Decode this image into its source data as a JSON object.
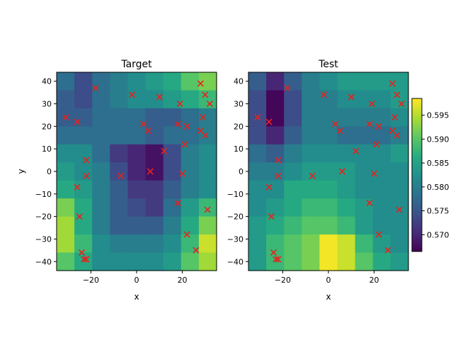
{
  "chart_data": [
    {
      "type": "heatmap",
      "title": "Target",
      "xlabel": "x",
      "ylabel": "y",
      "xlim": [
        -35,
        35
      ],
      "ylim": [
        -44,
        44
      ],
      "xticks": [
        -20,
        0,
        20
      ],
      "xtick_labels": [
        "−20",
        "0",
        "20"
      ],
      "yticks": [
        -40,
        -30,
        -20,
        -10,
        0,
        10,
        20,
        30,
        40
      ],
      "ytick_labels": [
        "−40",
        "−30",
        "−20",
        "−10",
        "0",
        "10",
        "20",
        "30",
        "40"
      ],
      "grid_cols": 9,
      "grid_rows": 11,
      "values": [
        [
          0.578,
          0.574,
          0.578,
          0.58,
          0.582,
          0.584,
          0.586,
          0.59,
          0.592
        ],
        [
          0.576,
          0.574,
          0.578,
          0.58,
          0.582,
          0.582,
          0.584,
          0.586,
          0.588
        ],
        [
          0.576,
          0.576,
          0.578,
          0.578,
          0.578,
          0.576,
          0.576,
          0.578,
          0.58
        ],
        [
          0.578,
          0.578,
          0.578,
          0.578,
          0.578,
          0.576,
          0.578,
          0.578,
          0.58
        ],
        [
          0.582,
          0.582,
          0.578,
          0.572,
          0.57,
          0.568,
          0.574,
          0.58,
          0.582
        ],
        [
          0.584,
          0.582,
          0.58,
          0.574,
          0.57,
          0.568,
          0.574,
          0.58,
          0.582
        ],
        [
          0.586,
          0.584,
          0.58,
          0.576,
          0.572,
          0.572,
          0.576,
          0.58,
          0.582
        ],
        [
          0.592,
          0.586,
          0.58,
          0.576,
          0.574,
          0.572,
          0.578,
          0.584,
          0.588
        ],
        [
          0.594,
          0.586,
          0.58,
          0.576,
          0.576,
          0.576,
          0.58,
          0.586,
          0.592
        ],
        [
          0.594,
          0.588,
          0.582,
          0.58,
          0.58,
          0.58,
          0.582,
          0.588,
          0.596
        ],
        [
          0.59,
          0.586,
          0.582,
          0.582,
          0.582,
          0.582,
          0.584,
          0.59,
          0.594
        ]
      ]
    },
    {
      "type": "heatmap",
      "title": "Test",
      "xlabel": "x",
      "xlim": [
        -35,
        35
      ],
      "ylim": [
        -44,
        44
      ],
      "xticks": [
        -20,
        0,
        20
      ],
      "xtick_labels": [
        "−20",
        "0",
        "20"
      ],
      "yticks": [
        -40,
        -30,
        -20,
        -10,
        0,
        10,
        20,
        30,
        40
      ],
      "ytick_labels": [
        "−40",
        "−30",
        "−20",
        "−10",
        "0",
        "10",
        "20",
        "30",
        "40"
      ],
      "grid_cols": 9,
      "grid_rows": 11,
      "values": [
        [
          0.576,
          0.57,
          0.576,
          0.58,
          0.582,
          0.584,
          0.584,
          0.584,
          0.584
        ],
        [
          0.574,
          0.567,
          0.574,
          0.58,
          0.58,
          0.582,
          0.582,
          0.582,
          0.584
        ],
        [
          0.574,
          0.567,
          0.574,
          0.58,
          0.58,
          0.58,
          0.58,
          0.58,
          0.582
        ],
        [
          0.574,
          0.57,
          0.576,
          0.58,
          0.58,
          0.578,
          0.578,
          0.578,
          0.58
        ],
        [
          0.578,
          0.576,
          0.58,
          0.582,
          0.582,
          0.582,
          0.582,
          0.582,
          0.584
        ],
        [
          0.58,
          0.58,
          0.582,
          0.584,
          0.584,
          0.584,
          0.582,
          0.582,
          0.582
        ],
        [
          0.582,
          0.582,
          0.586,
          0.586,
          0.586,
          0.584,
          0.582,
          0.582,
          0.582
        ],
        [
          0.582,
          0.584,
          0.586,
          0.588,
          0.588,
          0.586,
          0.584,
          0.582,
          0.582
        ],
        [
          0.584,
          0.586,
          0.588,
          0.59,
          0.59,
          0.588,
          0.584,
          0.582,
          0.582
        ],
        [
          0.584,
          0.588,
          0.59,
          0.592,
          0.598,
          0.596,
          0.588,
          0.584,
          0.582
        ],
        [
          0.584,
          0.588,
          0.59,
          0.592,
          0.598,
          0.596,
          0.59,
          0.586,
          0.584
        ]
      ]
    }
  ],
  "points": {
    "x": [
      28,
      30,
      32,
      29,
      30,
      28,
      -2,
      10,
      -18,
      19,
      21,
      18,
      22,
      20,
      12,
      3,
      5,
      6,
      -22,
      -22,
      -31,
      -26,
      -26,
      -7,
      18,
      -25,
      -22,
      31,
      22,
      26,
      -24,
      -23
    ],
    "y": [
      39,
      34,
      30,
      24,
      16,
      18,
      34,
      33,
      37,
      30,
      12,
      21,
      20,
      -1,
      9,
      21,
      18,
      0,
      5,
      -2,
      24,
      22,
      -7,
      -2,
      -14,
      -20,
      -39,
      -17,
      -28,
      -35,
      -36,
      -39
    ],
    "color": "#e8211b"
  },
  "colorbar": {
    "min": 0.5665,
    "max": 0.5985,
    "ticks": [
      0.57,
      0.575,
      0.58,
      0.585,
      0.59,
      0.595
    ],
    "tick_labels": [
      "0.570",
      "0.575",
      "0.580",
      "0.585",
      "0.590",
      "0.595"
    ],
    "colormap": "viridis"
  }
}
